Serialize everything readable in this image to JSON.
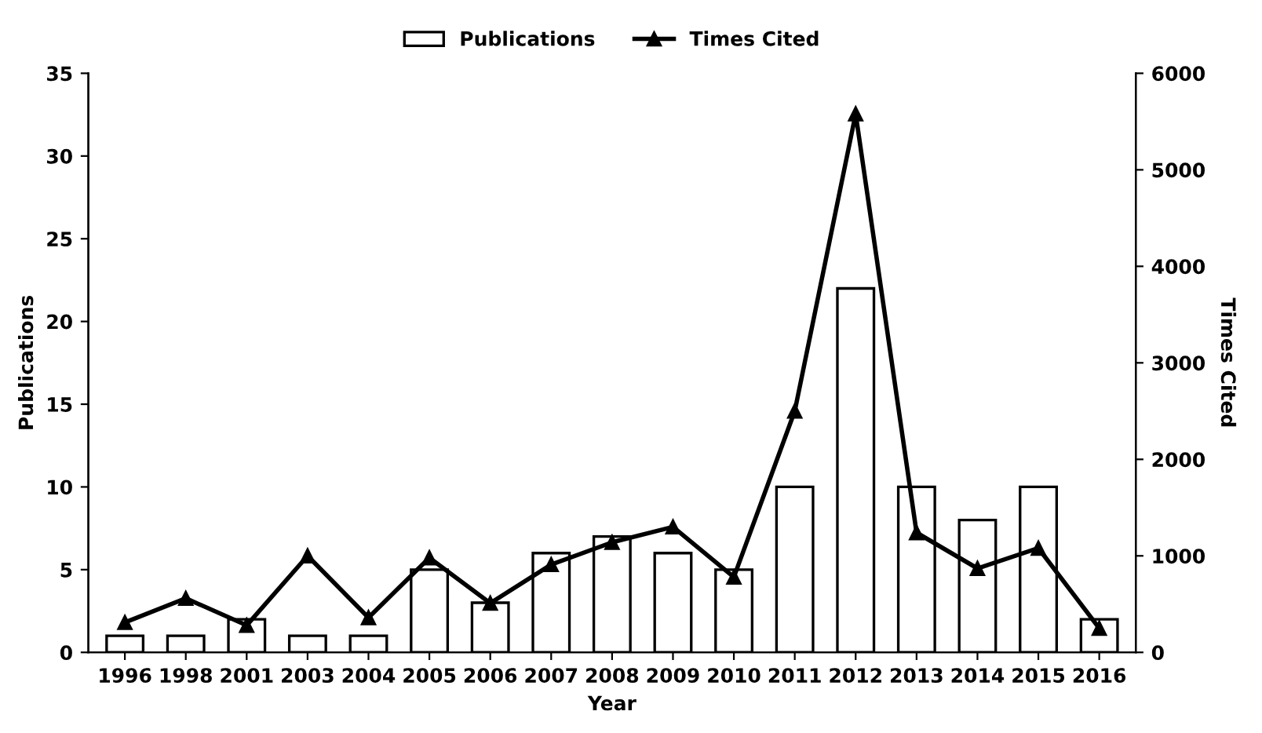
{
  "chart_data": {
    "type": "bar",
    "xlabel": "Year",
    "ylabel": "Publications",
    "y2label": "Times Cited",
    "categories": [
      "1996",
      "1998",
      "2001",
      "2003",
      "2004",
      "2005",
      "2006",
      "2007",
      "2008",
      "2009",
      "2010",
      "2011",
      "2012",
      "2013",
      "2014",
      "2015",
      "2016"
    ],
    "series": [
      {
        "name": "Publications",
        "color": "#ffffff",
        "values": [
          1,
          1,
          2,
          1,
          1,
          5,
          3,
          6,
          7,
          6,
          5,
          10,
          22,
          10,
          8,
          10,
          2
        ]
      },
      {
        "name": "Times Cited",
        "type": "line",
        "axis": "y2",
        "color": "#000000",
        "marker": "triangle",
        "values": [
          310,
          560,
          280,
          1000,
          360,
          980,
          510,
          910,
          1140,
          1300,
          780,
          2500,
          5580,
          1240,
          870,
          1080,
          250
        ]
      }
    ],
    "ylim": [
      0,
      35
    ],
    "yticks": [
      0,
      5,
      10,
      15,
      20,
      25,
      30,
      35
    ],
    "y2lim": [
      0,
      6000
    ],
    "y2ticks": [
      0,
      1000,
      2000,
      3000,
      4000,
      5000,
      6000
    ],
    "grid": false,
    "legend": "top"
  }
}
